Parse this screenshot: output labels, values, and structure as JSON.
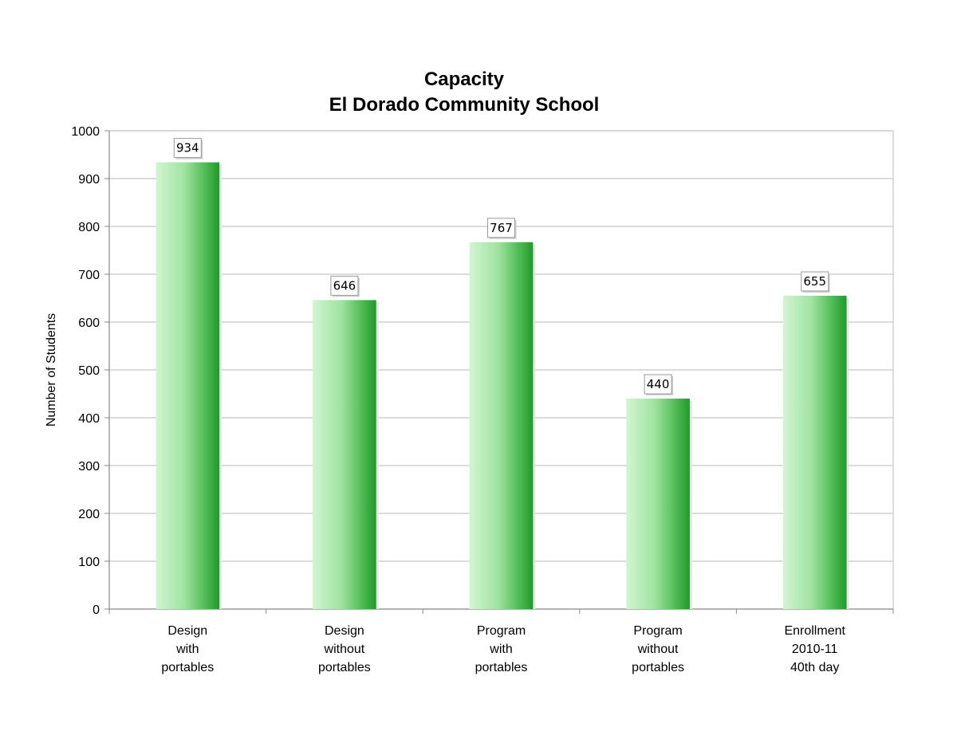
{
  "chart_data": {
    "type": "bar",
    "title": "Capacity",
    "subtitle": "El Dorado Community School",
    "xlabel": "",
    "ylabel": "Number of Students",
    "ylim": [
      0,
      1000
    ],
    "yticks": [
      0,
      100,
      200,
      300,
      400,
      500,
      600,
      700,
      800,
      900,
      1000
    ],
    "grid": true,
    "legend": "none",
    "categories": [
      [
        "Design",
        "with",
        "portables"
      ],
      [
        "Design",
        "without",
        "portables"
      ],
      [
        "Program",
        "with",
        "portables"
      ],
      [
        "Program",
        "without",
        "portables"
      ],
      [
        "Enrollment",
        "2010-11",
        "40th day"
      ]
    ],
    "values": [
      934,
      646,
      767,
      440,
      655
    ],
    "data_labels": [
      "934",
      "646",
      "767",
      "440",
      "655"
    ],
    "colors": {
      "bar_light": "#d2f5d2",
      "bar_mid": "#6fcf72",
      "bar_dark": "#1f9a2a",
      "grid": "#c8c8c8",
      "axis": "#888888"
    }
  }
}
